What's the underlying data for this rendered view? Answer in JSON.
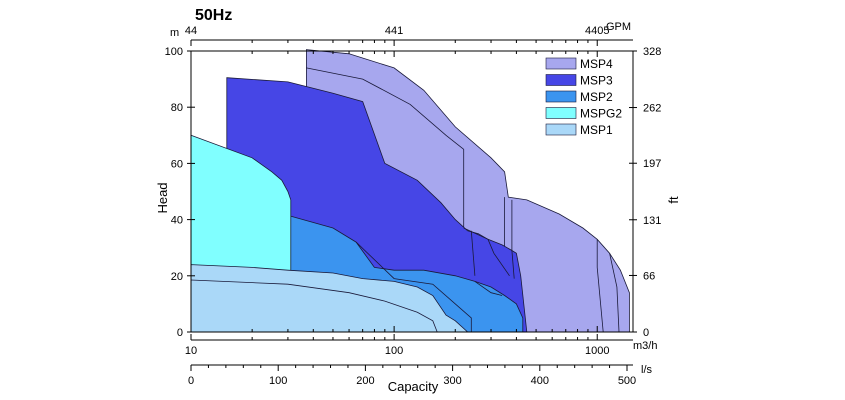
{
  "chart_data": {
    "type": "area",
    "title": "50Hz",
    "xlabel": "Capacity",
    "ylabel_left": "Head",
    "ylabel_right": "ft",
    "x_unit": "m3/h",
    "y_unit_left": "m",
    "top_axis_unit": "GPM",
    "bottom_axis2_unit": "l/s",
    "x_scale": "log",
    "xlim": [
      10,
      1500
    ],
    "ylim": [
      0,
      100
    ],
    "ft_ylim": [
      0,
      328
    ],
    "x_ticks": [
      {
        "v": 10,
        "l": "10"
      },
      {
        "v": 100,
        "l": "100"
      },
      {
        "v": 1000,
        "l": "1000"
      }
    ],
    "y_ticks": [
      0,
      20,
      40,
      60,
      80,
      100
    ],
    "ft_ticks": [
      {
        "v": 0,
        "l": "0"
      },
      {
        "v": 66,
        "l": "66"
      },
      {
        "v": 131,
        "l": "131"
      },
      {
        "v": 197,
        "l": "197"
      },
      {
        "v": 262,
        "l": "262"
      },
      {
        "v": 328,
        "l": "328"
      }
    ],
    "gpm_ticks": [
      {
        "v": 10,
        "l": "44"
      },
      {
        "v": 100,
        "l": "441"
      },
      {
        "v": 1000,
        "l": "4405"
      }
    ],
    "ls_ticks": [
      {
        "v": 0,
        "l": "0"
      },
      {
        "v": 100,
        "l": "100"
      },
      {
        "v": 200,
        "l": "200"
      },
      {
        "v": 300,
        "l": "300"
      },
      {
        "v": 400,
        "l": "400"
      },
      {
        "v": 500,
        "l": "500"
      }
    ],
    "grid": false,
    "legend_position": "top-right",
    "series": [
      {
        "name": "MSP4",
        "color": "#a7a7ee",
        "outline": [
          [
            37,
            100.5
          ],
          [
            60,
            99
          ],
          [
            100,
            94
          ],
          [
            140,
            86
          ],
          [
            200,
            73
          ],
          [
            300,
            62
          ],
          [
            350,
            57
          ],
          [
            365,
            48
          ],
          [
            450,
            47
          ],
          [
            650,
            42
          ],
          [
            850,
            37
          ],
          [
            1000,
            33
          ],
          [
            1150,
            28
          ],
          [
            1300,
            22
          ],
          [
            1440,
            14
          ],
          [
            1440,
            0
          ],
          [
            37,
            0
          ]
        ],
        "inner_lines": [
          [
            [
              37,
              94
            ],
            [
              70,
              90
            ],
            [
              120,
              81
            ],
            [
              180,
              70
            ],
            [
              220,
              65
            ],
            [
              220,
              31
            ]
          ],
          [
            [
              350,
              48
            ],
            [
              350,
              23
            ]
          ],
          [
            [
              380,
              47
            ],
            [
              380,
              26
            ]
          ],
          [
            [
              1000,
              33
            ],
            [
              1000,
              23
            ],
            [
              1070,
              0
            ]
          ],
          [
            [
              1150,
              28
            ],
            [
              1250,
              16
            ],
            [
              1280,
              0
            ]
          ]
        ]
      },
      {
        "name": "MSP3",
        "color": "#4646e6",
        "outline": [
          [
            15,
            90.5
          ],
          [
            30,
            89
          ],
          [
            50,
            85
          ],
          [
            70,
            82
          ],
          [
            90,
            60
          ],
          [
            130,
            54
          ],
          [
            170,
            46
          ],
          [
            200,
            40
          ],
          [
            230,
            36
          ],
          [
            260,
            35
          ],
          [
            290,
            33
          ],
          [
            340,
            31
          ],
          [
            380,
            29
          ],
          [
            400,
            28
          ],
          [
            420,
            20
          ],
          [
            450,
            0
          ],
          [
            15,
            0
          ]
        ],
        "inner_lines": [
          [
            [
              220,
              37
            ],
            [
              290,
              33
            ],
            [
              310,
              28
            ],
            [
              370,
              20
            ]
          ],
          [
            [
              240,
              36
            ],
            [
              250,
              20
            ]
          ],
          [
            [
              380,
              29
            ],
            [
              390,
              19
            ]
          ]
        ]
      },
      {
        "name": "MSP2",
        "color": "#3b94ef",
        "outline": [
          [
            30,
            41.5
          ],
          [
            50,
            37
          ],
          [
            65,
            32
          ],
          [
            80,
            23
          ],
          [
            100,
            22
          ],
          [
            140,
            22
          ],
          [
            200,
            20
          ],
          [
            250,
            18
          ],
          [
            300,
            16
          ],
          [
            350,
            13
          ],
          [
            400,
            10
          ],
          [
            430,
            5
          ],
          [
            430,
            0
          ],
          [
            30,
            0
          ]
        ],
        "inner_lines": [
          [
            [
              65,
              32
            ],
            [
              100,
              19
            ],
            [
              155,
              17
            ],
            [
              200,
              10
            ],
            [
              240,
              5
            ],
            [
              240,
              0
            ]
          ],
          [
            [
              250,
              18
            ],
            [
              300,
              14
            ],
            [
              340,
              13
            ]
          ]
        ]
      },
      {
        "name": "MSPG2",
        "color": "#80ffff",
        "outline": [
          [
            10,
            70
          ],
          [
            20,
            62
          ],
          [
            25,
            57
          ],
          [
            28,
            54
          ],
          [
            30,
            50
          ],
          [
            31,
            47
          ],
          [
            31,
            0
          ],
          [
            10,
            0
          ]
        ],
        "inner_lines": []
      },
      {
        "name": "MSP1",
        "color": "#aad8f8",
        "outline": [
          [
            10,
            24
          ],
          [
            20,
            23
          ],
          [
            30,
            22
          ],
          [
            50,
            21
          ],
          [
            70,
            19
          ],
          [
            100,
            18
          ],
          [
            130,
            16
          ],
          [
            155,
            13
          ],
          [
            180,
            6
          ],
          [
            200,
            4
          ],
          [
            230,
            0
          ],
          [
            10,
            0
          ]
        ],
        "inner_lines": [
          [
            [
              10,
              18.5
            ],
            [
              30,
              17
            ],
            [
              60,
              14
            ],
            [
              90,
              11
            ],
            [
              130,
              7
            ],
            [
              155,
              4
            ],
            [
              163,
              0
            ]
          ]
        ]
      }
    ]
  }
}
